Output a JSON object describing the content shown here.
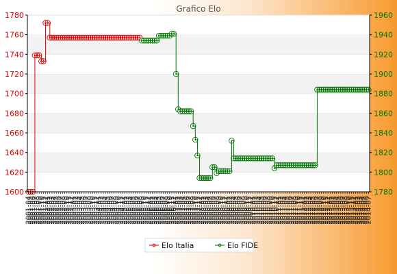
{
  "chart_data": {
    "type": "line",
    "title": "Grafico Elo",
    "left_axis": {
      "ylim": [
        1600,
        1780
      ],
      "ticks": [
        1600,
        1620,
        1640,
        1660,
        1680,
        1700,
        1720,
        1740,
        1760,
        1780
      ],
      "color": "#dd0000"
    },
    "right_axis": {
      "ylim": [
        1780,
        1960
      ],
      "ticks": [
        1780,
        1800,
        1820,
        1840,
        1860,
        1880,
        1900,
        1920,
        1940,
        1960
      ],
      "color": "#007700"
    },
    "x_count": 160,
    "series": [
      {
        "name": "Elo Italia",
        "axis": "left",
        "color": "#dd0000",
        "points": [
          [
            0,
            1600
          ],
          [
            1,
            1600
          ],
          [
            2,
            1600
          ],
          [
            3,
            1739
          ],
          [
            4,
            1739
          ],
          [
            5,
            1739
          ],
          [
            6,
            1733
          ],
          [
            7,
            1733
          ],
          [
            8,
            1772
          ],
          [
            9,
            1772
          ],
          [
            10,
            1757
          ],
          [
            11,
            1757
          ],
          [
            12,
            1757
          ],
          [
            13,
            1757
          ],
          [
            14,
            1757
          ],
          [
            15,
            1757
          ],
          [
            16,
            1757
          ],
          [
            17,
            1757
          ],
          [
            18,
            1757
          ],
          [
            19,
            1757
          ],
          [
            20,
            1757
          ],
          [
            21,
            1757
          ],
          [
            22,
            1757
          ],
          [
            23,
            1757
          ],
          [
            24,
            1757
          ],
          [
            25,
            1757
          ],
          [
            26,
            1757
          ],
          [
            27,
            1757
          ],
          [
            28,
            1757
          ],
          [
            29,
            1757
          ],
          [
            30,
            1757
          ],
          [
            31,
            1757
          ],
          [
            32,
            1757
          ],
          [
            33,
            1757
          ],
          [
            34,
            1757
          ],
          [
            35,
            1757
          ],
          [
            36,
            1757
          ],
          [
            37,
            1757
          ],
          [
            38,
            1757
          ],
          [
            39,
            1757
          ],
          [
            40,
            1757
          ],
          [
            41,
            1757
          ],
          [
            42,
            1757
          ],
          [
            43,
            1757
          ],
          [
            44,
            1757
          ],
          [
            45,
            1757
          ],
          [
            46,
            1757
          ],
          [
            47,
            1757
          ],
          [
            48,
            1757
          ],
          [
            49,
            1757
          ],
          [
            50,
            1757
          ],
          [
            51,
            1757
          ],
          [
            52,
            1757
          ]
        ]
      },
      {
        "name": "Elo FIDE",
        "axis": "right",
        "color": "#007700",
        "points": [
          [
            53,
            1934
          ],
          [
            54,
            1934
          ],
          [
            55,
            1934
          ],
          [
            56,
            1934
          ],
          [
            57,
            1934
          ],
          [
            58,
            1934
          ],
          [
            59,
            1934
          ],
          [
            60,
            1934
          ],
          [
            61,
            1939
          ],
          [
            62,
            1939
          ],
          [
            63,
            1939
          ],
          [
            64,
            1939
          ],
          [
            65,
            1939
          ],
          [
            66,
            1939
          ],
          [
            67,
            1941
          ],
          [
            68,
            1941
          ],
          [
            69,
            1900
          ],
          [
            70,
            1864
          ],
          [
            71,
            1862
          ],
          [
            72,
            1862
          ],
          [
            73,
            1862
          ],
          [
            74,
            1862
          ],
          [
            75,
            1862
          ],
          [
            76,
            1862
          ],
          [
            77,
            1847
          ],
          [
            78,
            1833
          ],
          [
            79,
            1817
          ],
          [
            80,
            1794
          ],
          [
            81,
            1794
          ],
          [
            82,
            1794
          ],
          [
            83,
            1794
          ],
          [
            84,
            1794
          ],
          [
            85,
            1794
          ],
          [
            86,
            1805
          ],
          [
            87,
            1805
          ],
          [
            88,
            1799
          ],
          [
            89,
            1801
          ],
          [
            90,
            1801
          ],
          [
            91,
            1801
          ],
          [
            92,
            1801
          ],
          [
            93,
            1801
          ],
          [
            94,
            1801
          ],
          [
            95,
            1832
          ],
          [
            96,
            1814
          ],
          [
            97,
            1814
          ],
          [
            98,
            1814
          ],
          [
            99,
            1814
          ],
          [
            100,
            1814
          ],
          [
            101,
            1814
          ],
          [
            102,
            1814
          ],
          [
            103,
            1814
          ],
          [
            104,
            1814
          ],
          [
            105,
            1814
          ],
          [
            106,
            1814
          ],
          [
            107,
            1814
          ],
          [
            108,
            1814
          ],
          [
            109,
            1814
          ],
          [
            110,
            1814
          ],
          [
            111,
            1814
          ],
          [
            112,
            1814
          ],
          [
            113,
            1814
          ],
          [
            114,
            1814
          ],
          [
            115,
            1804
          ],
          [
            116,
            1807
          ],
          [
            117,
            1807
          ],
          [
            118,
            1807
          ],
          [
            119,
            1807
          ],
          [
            120,
            1807
          ],
          [
            121,
            1807
          ],
          [
            122,
            1807
          ],
          [
            123,
            1807
          ],
          [
            124,
            1807
          ],
          [
            125,
            1807
          ],
          [
            126,
            1807
          ],
          [
            127,
            1807
          ],
          [
            128,
            1807
          ],
          [
            129,
            1807
          ],
          [
            130,
            1807
          ],
          [
            131,
            1807
          ],
          [
            132,
            1807
          ],
          [
            133,
            1807
          ],
          [
            134,
            1807
          ],
          [
            135,
            1884
          ],
          [
            136,
            1884
          ],
          [
            137,
            1884
          ],
          [
            138,
            1884
          ],
          [
            139,
            1884
          ],
          [
            140,
            1884
          ],
          [
            141,
            1884
          ],
          [
            142,
            1884
          ],
          [
            143,
            1884
          ],
          [
            144,
            1884
          ],
          [
            145,
            1884
          ],
          [
            146,
            1884
          ],
          [
            147,
            1884
          ],
          [
            148,
            1884
          ],
          [
            149,
            1884
          ],
          [
            150,
            1884
          ],
          [
            151,
            1884
          ],
          [
            152,
            1884
          ],
          [
            153,
            1884
          ],
          [
            154,
            1884
          ],
          [
            155,
            1884
          ],
          [
            156,
            1884
          ],
          [
            157,
            1884
          ],
          [
            158,
            1884
          ],
          [
            159,
            1884
          ]
        ]
      }
    ],
    "x_tick_labels": [
      "2001-04",
      "2001-05",
      "2001-06",
      "2001-07",
      "2001-08",
      "2001-09",
      "2001-10",
      "2001-11",
      "2001-12",
      "2002-01",
      "2002-02",
      "2002-03",
      "2002-04",
      "2002-05",
      "2002-06",
      "2002-07",
      "2002-08",
      "2002-09",
      "2002-10",
      "2002-11",
      "2002-12",
      "2003-01",
      "2003-02",
      "2003-03",
      "2003-04",
      "2003-05",
      "2003-06",
      "2003-07",
      "2003-08",
      "2003-09",
      "2003-10",
      "2003-11",
      "2003-12",
      "2004-01",
      "2004-02",
      "2004-03",
      "2004-04",
      "2004-05",
      "2004-06",
      "2004-07",
      "2004-08",
      "2004-09",
      "2004-10",
      "2004-11",
      "2004-12",
      "2005-01",
      "2005-02",
      "2005-03",
      "2005-04",
      "2005-05",
      "2005-06",
      "2005-07",
      "2005-08",
      "2005-09",
      "2005-10",
      "2005-11",
      "2005-12",
      "2006-01",
      "2006-02",
      "2006-03",
      "2006-04",
      "2006-05",
      "2006-06",
      "2006-07",
      "2006-08",
      "2006-09",
      "2006-10",
      "2006-11",
      "2006-12",
      "2007-01",
      "2007-02",
      "2007-03",
      "2007-04",
      "2007-05",
      "2007-06",
      "2007-07",
      "2007-08",
      "2007-09",
      "2007-10",
      "2007-11",
      "2007-12",
      "2008-01",
      "2008-02",
      "2008-03",
      "2008-04",
      "2008-05",
      "2008-06",
      "2008-07",
      "2008-08",
      "2008-09",
      "2008-10",
      "2008-11",
      "2008-12",
      "2009-01",
      "2009-02",
      "2009-03",
      "2009-04",
      "2009-05",
      "2009-06",
      "2009-07",
      "2009-08",
      "2009-09",
      "2009-10",
      "2009-11",
      "2009-12",
      "2010-01",
      "2010-02",
      "2010-03",
      "2010-04",
      "2010-05",
      "2010-06",
      "2010-07",
      "2010-08",
      "2010-09",
      "2010-10",
      "2010-11",
      "2010-12",
      "2011-01",
      "2011-02",
      "2011-03",
      "2011-04",
      "2011-05",
      "2011-06",
      "2011-07",
      "2011-08",
      "2011-09",
      "2011-10",
      "2011-11",
      "2011-12",
      "2012-01",
      "2012-02",
      "2012-03",
      "2012-04",
      "2012-05",
      "2012-06",
      "2012-07",
      "2012-08",
      "2012-09",
      "2012-10",
      "2012-11",
      "2012-12",
      "2013-01",
      "2013-02",
      "2013-03",
      "2013-04",
      "2013-05",
      "2013-06",
      "2013-07",
      "2013-08",
      "2013-09",
      "2013-10",
      "2013-11",
      "2013-12",
      "2014-01",
      "2014-02",
      "2014-03",
      "2014-04",
      "2014-05",
      "2014-06",
      "2014-07"
    ],
    "legend_position": "bottom",
    "grid": "horizontal bands"
  }
}
